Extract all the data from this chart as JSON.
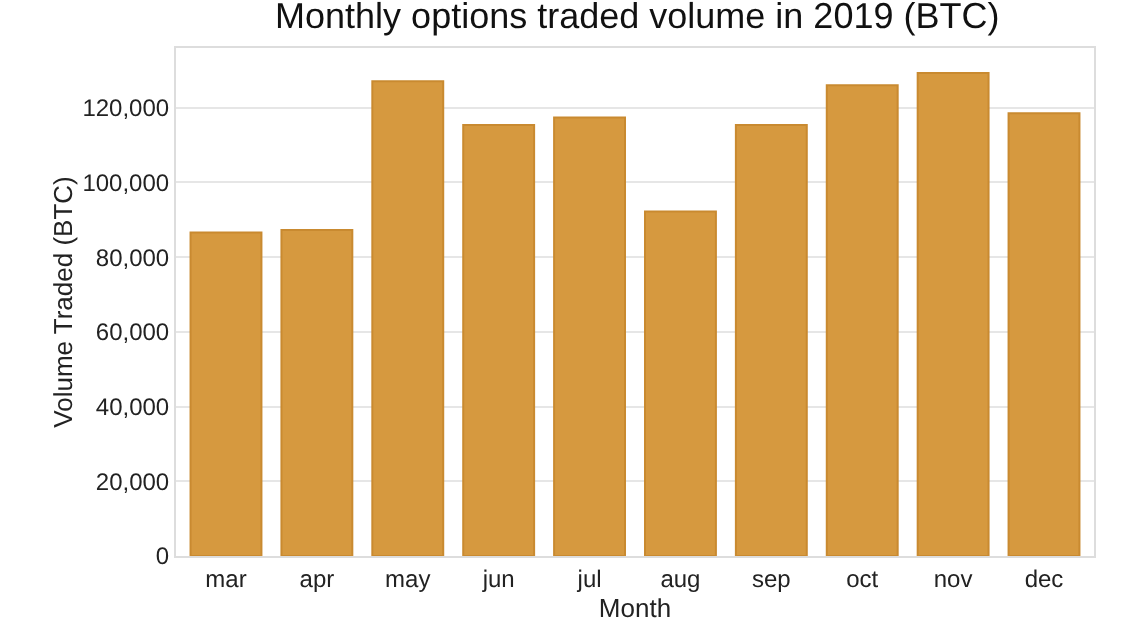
{
  "chart_data": {
    "type": "bar",
    "title": "Monthly options traded volume in 2019 (BTC)",
    "xlabel": "Month",
    "ylabel": "Volume Traded (BTC)",
    "categories": [
      "mar",
      "apr",
      "may",
      "jun",
      "jul",
      "aug",
      "sep",
      "oct",
      "nov",
      "dec"
    ],
    "values": [
      86600,
      87300,
      127100,
      115400,
      117400,
      92200,
      115400,
      126000,
      129300,
      118500
    ],
    "color": "#d6993f",
    "ylim": [
      0,
      136000
    ],
    "yticks": [
      {
        "value": 0,
        "label": "0"
      },
      {
        "value": 20000,
        "label": "20,000"
      },
      {
        "value": 40000,
        "label": "40,000"
      },
      {
        "value": 60000,
        "label": "60,000"
      },
      {
        "value": 80000,
        "label": "80,000"
      },
      {
        "value": 100000,
        "label": "100,000"
      },
      {
        "value": 120000,
        "label": "120,000"
      }
    ],
    "grid": "y"
  }
}
